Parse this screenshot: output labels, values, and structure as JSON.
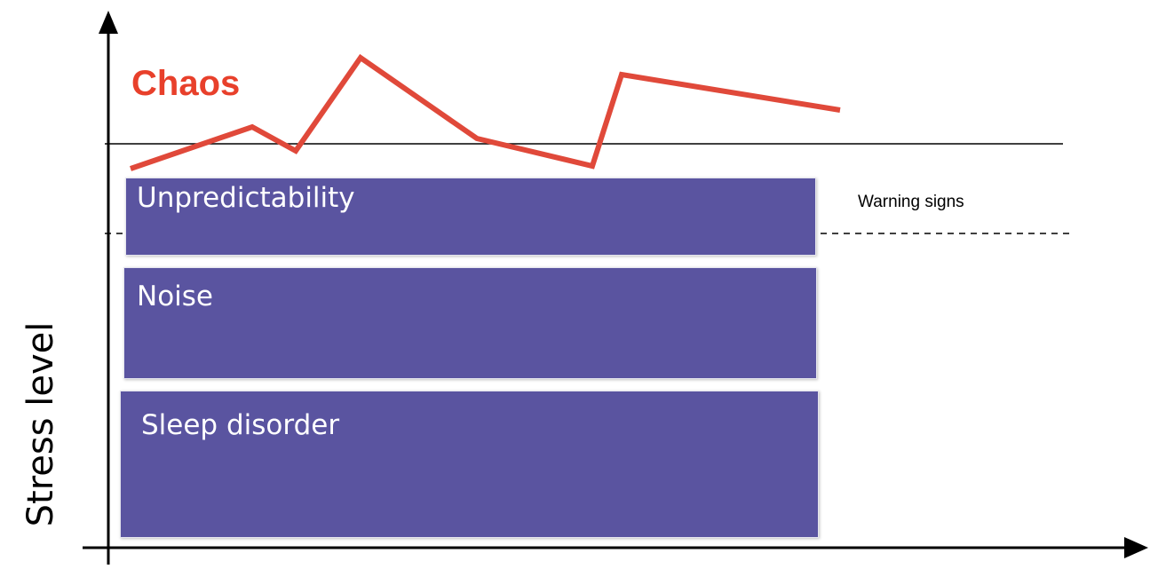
{
  "diagram": {
    "chaos_label": "Chaos",
    "warning_label": "Warning signs",
    "y_axis_label": "Stress level",
    "boxes": [
      {
        "label": "Unpredictability"
      },
      {
        "label": "Noise"
      },
      {
        "label": "Sleep disorder"
      }
    ],
    "colors": {
      "box_fill": "#5a54a0",
      "chaos_line": "#e0493a",
      "chaos_text": "#e8402b",
      "axis": "#000000"
    }
  }
}
